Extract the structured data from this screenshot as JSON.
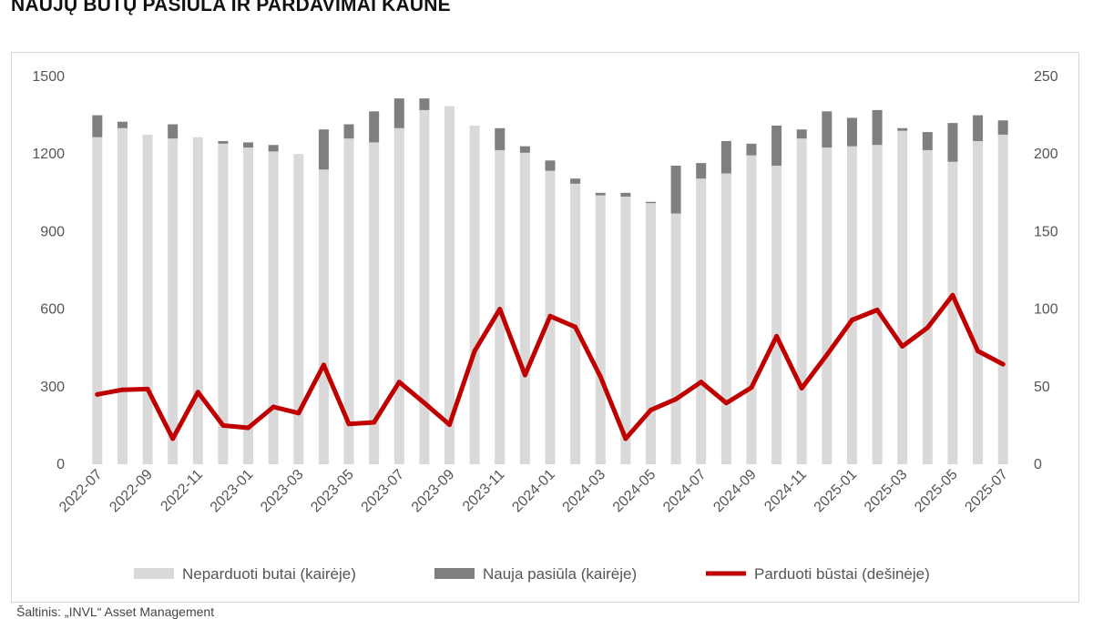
{
  "title": "NAUJŲ BŪTŲ PASIŪLA IR PARDAVIMAI KAUNE",
  "source": "Šaltinis: „INVL“ Asset Management",
  "colors": {
    "unsold": "#d9d9d9",
    "new_supply": "#7f7f7f",
    "sold": "#c00000"
  },
  "chart_data": {
    "type": "bar",
    "title": "NAUJŲ BŪTŲ PASIŪLA IR PARDAVIMAI KAUNE",
    "categories": [
      "2022-07",
      "2022-08",
      "2022-09",
      "2022-10",
      "2022-11",
      "2022-12",
      "2023-01",
      "2023-02",
      "2023-03",
      "2023-04",
      "2023-05",
      "2023-06",
      "2023-07",
      "2023-08",
      "2023-09",
      "2023-10",
      "2023-11",
      "2023-12",
      "2024-01",
      "2024-02",
      "2024-03",
      "2024-04",
      "2024-05",
      "2024-06",
      "2024-07",
      "2024-08",
      "2024-09",
      "2024-10",
      "2024-11",
      "2024-12",
      "2025-01",
      "2025-02",
      "2025-03",
      "2025-04",
      "2025-05",
      "2025-06",
      "2025-07"
    ],
    "x_tick_labels": [
      "2022-07",
      "2022-09",
      "2022-11",
      "2023-01",
      "2023-03",
      "2023-05",
      "2023-07",
      "2023-09",
      "2023-11",
      "2024-01",
      "2024-03",
      "2024-05",
      "2024-07",
      "2024-09",
      "2024-11",
      "2025-01",
      "2025-03",
      "2025-05",
      "2025-07"
    ],
    "stacked": true,
    "series": [
      {
        "name": "Neparduoti butai (kairėje)",
        "type": "bar",
        "axis": "left",
        "values": [
          1265,
          1300,
          1275,
          1260,
          1265,
          1240,
          1225,
          1210,
          1200,
          1140,
          1260,
          1245,
          1300,
          1370,
          1385,
          1310,
          1215,
          1205,
          1135,
          1085,
          1040,
          1035,
          1010,
          970,
          1105,
          1125,
          1195,
          1155,
          1260,
          1225,
          1230,
          1235,
          1290,
          1215,
          1170,
          1250,
          1275
        ]
      },
      {
        "name": "Nauja pasiūla (kairėje)",
        "type": "bar",
        "axis": "left",
        "values": [
          85,
          25,
          0,
          55,
          0,
          10,
          20,
          25,
          0,
          155,
          55,
          120,
          115,
          45,
          0,
          0,
          85,
          25,
          40,
          20,
          10,
          15,
          5,
          185,
          60,
          125,
          45,
          155,
          35,
          140,
          110,
          135,
          10,
          70,
          150,
          100,
          55
        ]
      },
      {
        "name": "Parduoti būstai (dešinėje)",
        "type": "line",
        "axis": "right",
        "values": [
          45,
          48,
          48.5,
          16.5,
          46.5,
          25,
          23.5,
          37,
          33,
          64,
          26,
          27,
          53,
          39.5,
          25.5,
          73,
          100,
          57.5,
          95.5,
          88.5,
          56.5,
          16.5,
          35,
          42,
          53,
          39.5,
          49.5,
          82.5,
          49,
          70.5,
          93,
          99.5,
          76,
          88,
          109,
          73,
          64.5
        ]
      }
    ],
    "y_left": {
      "min": 0,
      "max": 1500,
      "ticks": [
        "0",
        "300",
        "600",
        "900",
        "1200",
        "1500"
      ]
    },
    "y_right": {
      "min": 0,
      "max": 250,
      "ticks": [
        "0",
        "50",
        "100",
        "150",
        "200",
        "250"
      ]
    },
    "grid": false,
    "legend_position": "bottom"
  }
}
